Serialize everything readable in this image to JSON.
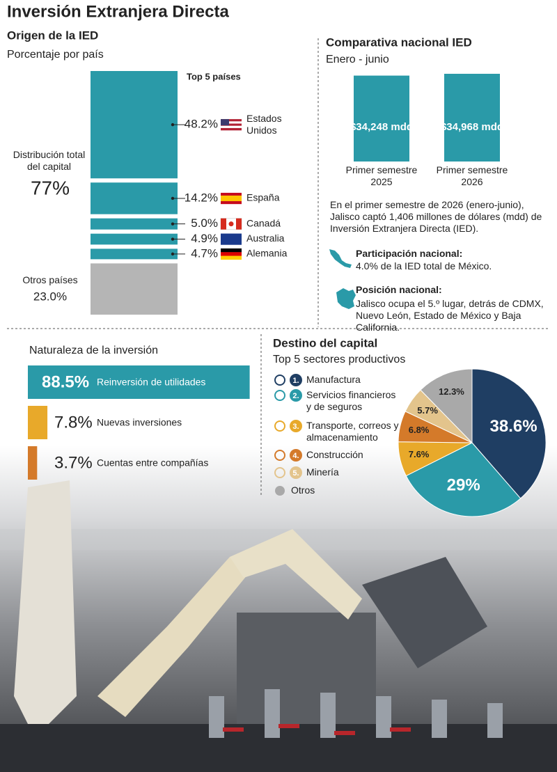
{
  "title": "Inversión Extranjera Directa",
  "chart_data": [
    {
      "type": "stacked-column",
      "title": "Origen de la IED",
      "subtitle": "Porcentaje por país",
      "legend_title": "Top 5 países",
      "note": "Distribución total del capital",
      "total": 77,
      "total_label": "77%",
      "categories": [
        "Estados Unidos",
        "España",
        "Canadá",
        "Australia",
        "Alemania",
        "Otros países"
      ],
      "values": [
        48.2,
        14.2,
        5.0,
        4.9,
        4.7,
        23.0
      ],
      "value_labels": [
        "48.2%",
        "14.2%",
        "5.0%",
        "4.9%",
        "4.7%",
        "23.0%"
      ],
      "colors": [
        "#2a9aa8",
        "#2a9aa8",
        "#2a9aa8",
        "#2a9aa8",
        "#2a9aa8",
        "#b5b5b5"
      ]
    },
    {
      "type": "bar",
      "title": "Comparativa nacional IED",
      "subtitle": "Enero - junio",
      "categories": [
        "Primer semestre 2025",
        "Primer semestre 2026"
      ],
      "values": [
        34248,
        34968
      ],
      "value_labels": [
        "$34,248 mdd",
        "$34,968 mdd"
      ],
      "color": "#2a9aa8"
    },
    {
      "type": "hbar",
      "title": "Naturaleza de la inversión",
      "categories": [
        "Reinversión de utilidades",
        "Nuevas inversiones",
        "Cuentas entre compañías"
      ],
      "values": [
        88.5,
        7.8,
        3.7
      ],
      "value_labels": [
        "88.5%",
        "7.8%",
        "3.7%"
      ],
      "colors": [
        "#2a9aa8",
        "#e8a92a",
        "#d47a2a"
      ]
    },
    {
      "type": "pie",
      "title": "Destino del capital",
      "subtitle": "Top 5 sectores productivos",
      "categories": [
        "Manufactura",
        "Servicios financieros y de seguros",
        "Transporte, correos y almacenamiento",
        "Construcción",
        "Minería",
        "Otros"
      ],
      "ranks": [
        "1.",
        "2.",
        "3.",
        "4.",
        "5.",
        null
      ],
      "values": [
        38.6,
        29,
        7.6,
        6.8,
        5.7,
        12.3
      ],
      "value_labels": [
        "38.6%",
        "29%",
        "7.6%",
        "6.8%",
        "5.7%",
        "12.3%"
      ],
      "colors": [
        "#1f3e63",
        "#2a9aa8",
        "#e8a92a",
        "#d47a2a",
        "#e3c48c",
        "#a9a9a9"
      ]
    }
  ],
  "national": {
    "summary": "En el primer semestre de 2026 (enero-junio), Jalisco captó 1,406 millones de dólares (mdd) de Inversión Extranjera Directa (IED).",
    "items": [
      {
        "heading": "Participación nacional:",
        "text": "4.0% de la IED total de México."
      },
      {
        "heading": "Posición nacional:",
        "text": "Jalisco ocupa el 5.º lugar, detrás de CDMX, Nuevo León, Estado de México y Baja California."
      }
    ]
  }
}
